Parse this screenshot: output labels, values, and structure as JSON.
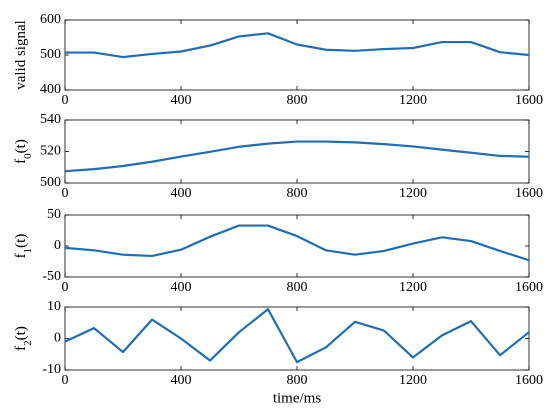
{
  "chart_data": [
    {
      "type": "line",
      "ylabel": [
        "valid signal"
      ],
      "color": "#1f6db5",
      "x": [
        0,
        100,
        200,
        300,
        400,
        500,
        600,
        700,
        800,
        900,
        1000,
        1100,
        1200,
        1300,
        1400,
        1500,
        1600
      ],
      "values": [
        507,
        507,
        494,
        503,
        510,
        527,
        553,
        562,
        530,
        515,
        512,
        517,
        520,
        537,
        537,
        508,
        500
      ],
      "xlim": [
        0,
        1600
      ],
      "xticks": [
        0,
        400,
        800,
        1200,
        1600
      ],
      "ylim": [
        400,
        600
      ],
      "yticks": [
        400,
        500,
        600
      ]
    },
    {
      "type": "line",
      "ylabel": [
        "f",
        "0",
        "(t)"
      ],
      "color": "#1f6db5",
      "x": [
        0,
        100,
        200,
        300,
        400,
        500,
        600,
        700,
        800,
        900,
        1000,
        1100,
        1200,
        1300,
        1400,
        1500,
        1600
      ],
      "values": [
        507.5,
        508.8,
        510.8,
        513.5,
        516.8,
        519.8,
        523,
        525,
        526.3,
        526.3,
        525.8,
        524.7,
        523.2,
        521.2,
        519.2,
        517.2,
        516.7
      ],
      "xlim": [
        0,
        1600
      ],
      "xticks": [
        0,
        400,
        800,
        1200,
        1600
      ],
      "ylim": [
        500,
        540
      ],
      "yticks": [
        500,
        520,
        540
      ]
    },
    {
      "type": "line",
      "ylabel": [
        "f",
        "1",
        "(t)"
      ],
      "color": "#1f6db5",
      "x": [
        0,
        100,
        200,
        300,
        400,
        500,
        600,
        700,
        800,
        900,
        1000,
        1100,
        1200,
        1300,
        1400,
        1500,
        1600
      ],
      "values": [
        -3,
        -7,
        -14,
        -16,
        -6,
        15,
        33,
        33,
        16,
        -7,
        -14,
        -8,
        4,
        14,
        8,
        -8,
        -23
      ],
      "xlim": [
        0,
        1600
      ],
      "xticks": [
        0,
        400,
        800,
        1200,
        1600
      ],
      "ylim": [
        -50,
        50
      ],
      "yticks": [
        -50,
        0,
        50
      ]
    },
    {
      "type": "line",
      "ylabel": [
        "f",
        "2",
        "(t)"
      ],
      "xlabel": "time/ms",
      "color": "#1f6db5",
      "x": [
        0,
        100,
        200,
        300,
        400,
        500,
        600,
        700,
        800,
        900,
        1000,
        1100,
        1200,
        1300,
        1400,
        1500,
        1600
      ],
      "values": [
        -1,
        3.3,
        -4.3,
        6,
        0,
        -7,
        2,
        9.3,
        -7.5,
        -2.8,
        5.3,
        2.5,
        -6,
        1,
        5.5,
        -5.3,
        2
      ],
      "xlim": [
        0,
        1600
      ],
      "xticks": [
        0,
        400,
        800,
        1200,
        1600
      ],
      "ylim": [
        -10,
        10
      ],
      "yticks": [
        -10,
        0,
        10
      ]
    }
  ]
}
